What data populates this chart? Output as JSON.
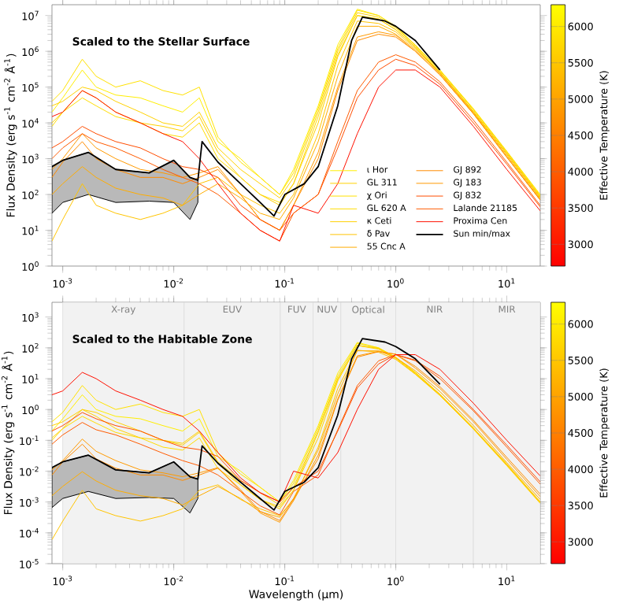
{
  "chart_data": [
    {
      "type": "line",
      "title": "Scaled to the Stellar Surface",
      "ylabel": "Flux Density (erg s$^{-1}$ cm$^{-2}$ Å$^{-1}$)",
      "clabel": "Effective Temperature (K)",
      "log": "xy",
      "legend": "bottom right",
      "xlim": [
        0.0008,
        20
      ],
      "ylim": [
        1,
        20000000.0
      ],
      "clim": [
        2700,
        6300
      ],
      "xticks": [
        {
          "value": 0.001,
          "label": "10$^{-3}$"
        },
        {
          "value": 0.01,
          "label": "10$^{-2}$"
        },
        {
          "value": 0.1,
          "label": "10$^{-1}$"
        },
        {
          "value": 1,
          "label": "10$^{0}$"
        },
        {
          "value": 10,
          "label": "10$^{1}$"
        }
      ],
      "yticks": [
        {
          "value": 1,
          "label": "10$^{0}$"
        },
        {
          "value": 10,
          "label": "10$^{1}$"
        },
        {
          "value": 100,
          "label": "10$^{2}$"
        },
        {
          "value": 1000,
          "label": "10$^{3}$"
        },
        {
          "value": 10000,
          "label": "10$^{4}$"
        },
        {
          "value": 100000,
          "label": "10$^{5}$"
        },
        {
          "value": 1000000,
          "label": "10$^{6}$"
        },
        {
          "value": 10000000,
          "label": "10$^{7}$"
        }
      ],
      "cticks": [
        3000,
        3500,
        4000,
        4500,
        5000,
        5500,
        6000
      ],
      "x": [
        0.0008,
        0.001,
        0.0015,
        0.002,
        0.003,
        0.005,
        0.008,
        0.012,
        0.017,
        0.025,
        0.04,
        0.06,
        0.09,
        0.12,
        0.2,
        0.3,
        0.45,
        0.7,
        1,
        1.5,
        2.5,
        5,
        10,
        20
      ],
      "series": [
        {
          "name": "ι Hor",
          "color": "#ffee00",
          "values": [
            20000.0,
            50000.0,
            300000.0,
            100000.0,
            60000.0,
            50000.0,
            30000.0,
            20000.0,
            50000.0,
            3000.0,
            1000.0,
            300,
            100,
            500,
            30000.0,
            1500000.0,
            15000000.0,
            10000000.0,
            5000000.0,
            1500000.0,
            300000.0,
            25000.0,
            1600.0,
            100
          ]
        },
        {
          "name": "GL 311",
          "color": "#ffd100",
          "values": [
            30000.0,
            40000.0,
            100000.0,
            80000.0,
            40000.0,
            20000.0,
            10000.0,
            8000.0,
            20000.0,
            2000.0,
            500,
            200,
            80,
            300,
            20000.0,
            1000000.0,
            12000000.0,
            9000000.0,
            4500000.0,
            1400000.0,
            280000.0,
            23000.0,
            1500.0,
            90
          ]
        },
        {
          "name": "χ Ori",
          "color": "#ffe100",
          "values": [
            40000.0,
            80000.0,
            600000.0,
            200000.0,
            100000.0,
            150000.0,
            80000.0,
            60000.0,
            100000.0,
            4000.0,
            800,
            300,
            100,
            400,
            25000.0,
            1200000.0,
            14000000.0,
            10000000.0,
            4800000.0,
            1500000.0,
            300000.0,
            24000.0,
            1600.0,
            95
          ]
        },
        {
          "name": "GL 620 A",
          "color": "#ffdc00",
          "values": [
            8000.0,
            20000.0,
            50000.0,
            30000.0,
            15000.0,
            10000.0,
            5000.0,
            4000.0,
            10000.0,
            1000.0,
            300,
            100,
            60,
            200,
            15000.0,
            800000.0,
            10000000.0,
            8000000.0,
            4000000.0,
            1300000.0,
            260000.0,
            21000.0,
            1400.0,
            85
          ]
        },
        {
          "name": "κ Ceti",
          "color": "#ffd000",
          "values": [
            10000.0,
            20000.0,
            80000.0,
            50000.0,
            20000.0,
            10000.0,
            8000.0,
            6000.0,
            15000.0,
            1500.0,
            300,
            100,
            50,
            200,
            10000.0,
            700000.0,
            10000000.0,
            8000000.0,
            4000000.0,
            1300000.0,
            260000.0,
            21000.0,
            1400.0,
            85
          ]
        },
        {
          "name": "δ Pav",
          "color": "#ffc400",
          "values": [
            5,
            20,
            200,
            50,
            30,
            20,
            30,
            50,
            200,
            300,
            100,
            50,
            30,
            100,
            5000.0,
            400000.0,
            7000000.0,
            6000000.0,
            3500000.0,
            1200000.0,
            250000.0,
            20000.0,
            1300.0,
            80
          ]
        },
        {
          "name": "55 Cnc A",
          "color": "#ffad00",
          "values": [
            100,
            200,
            600,
            300,
            150,
            100,
            80,
            50,
            100,
            200,
            80,
            30,
            20,
            80,
            3000.0,
            200000.0,
            5000000.0,
            5000000.0,
            3000000.0,
            1100000.0,
            240000.0,
            19000.0,
            1200.0,
            75
          ]
        },
        {
          "name": "GJ 892",
          "color": "#ff8c00",
          "values": [
            300,
            800,
            3000.0,
            1000.0,
            500,
            300,
            300,
            200,
            300,
            500,
            100,
            20,
            10,
            50,
            1000.0,
            80000.0,
            2000000.0,
            3000000.0,
            2500000.0,
            1000000.0,
            220000.0,
            18000.0,
            1100.0,
            70
          ]
        },
        {
          "name": "GJ 183",
          "color": "#ff9a00",
          "values": [
            500,
            1000.0,
            5000.0,
            2000.0,
            1000.0,
            500,
            400,
            300,
            400,
            600,
            100,
            20,
            10,
            50,
            1500.0,
            100000.0,
            2500000.0,
            3500000.0,
            2800000.0,
            1000000.0,
            220000.0,
            18000.0,
            1100.0,
            70
          ]
        },
        {
          "name": "GJ 832",
          "color": "#ff4c00",
          "values": [
            2000.0,
            3000.0,
            8000.0,
            5000.0,
            3000.0,
            2000.0,
            1000.0,
            600,
            500,
            300,
            50,
            20,
            10,
            30,
            100,
            2000.0,
            50000.0,
            300000.0,
            600000.0,
            400000.0,
            120000.0,
            10000.0,
            700,
            45
          ]
        },
        {
          "name": "Lalande 21185",
          "color": "#ff5a00",
          "values": [
            1000.0,
            2000.0,
            5000.0,
            3000.0,
            2000.0,
            1000.0,
            500,
            300,
            200,
            100,
            30,
            10,
            5,
            30,
            100,
            3000.0,
            80000.0,
            500000.0,
            800000.0,
            500000.0,
            140000.0,
            12000.0,
            800,
            50
          ]
        },
        {
          "name": "Proxima Cen",
          "color": "#ff1000",
          "values": [
            15000.0,
            20000.0,
            80000.0,
            50000.0,
            20000.0,
            10000.0,
            5000.0,
            3000.0,
            1000.0,
            200,
            30,
            10,
            5,
            50,
            30,
            200,
            5000.0,
            100000.0,
            300000.0,
            300000.0,
            100000.0,
            8000.0,
            500,
            35
          ]
        },
        {
          "name": "Sun min/max",
          "color": "#000000",
          "x": [
            0.0008,
            0.001,
            0.0017,
            0.003,
            0.006,
            0.01,
            0.014,
            0.0165,
            0.018,
            0.025,
            0.04,
            0.06,
            0.08,
            0.1,
            0.15,
            0.2,
            0.3,
            0.4,
            0.5,
            0.8,
            1,
            1.5,
            2.5
          ],
          "values": [
            600,
            900,
            1500,
            500,
            400,
            900,
            300,
            250,
            3000,
            800,
            200,
            60,
            25,
            100,
            200,
            600,
            30000.0,
            2000000.0,
            9000000.0,
            7000000.0,
            5000000.0,
            2000000.0,
            300000.0
          ],
          "upper": [
            600,
            900,
            1500,
            500,
            400,
            900,
            300,
            250,
            null,
            null,
            null,
            null,
            null,
            null,
            null,
            null,
            null,
            null,
            null,
            null,
            null,
            null,
            null
          ],
          "lower": [
            30,
            60,
            100,
            60,
            65,
            60,
            20,
            60,
            null,
            null,
            null,
            null,
            null,
            null,
            null,
            null,
            null,
            null,
            null,
            null,
            null,
            null,
            null
          ]
        }
      ]
    },
    {
      "type": "line",
      "title": "Scaled to the Habitable Zone",
      "xlabel": "Wavelength (µm)",
      "ylabel": "Flux Density (erg s$^{-1}$ cm$^{-2}$ Å$^{-1}$)",
      "clabel": "Effective Temperature (K)",
      "log": "xy",
      "xlim": [
        0.0008,
        20
      ],
      "ylim": [
        1e-05,
        3000
      ],
      "clim": [
        2700,
        6300
      ],
      "xticks": [
        {
          "value": 0.001,
          "label": "10$^{-3}$"
        },
        {
          "value": 0.01,
          "label": "10$^{-2}$"
        },
        {
          "value": 0.1,
          "label": "10$^{-1}$"
        },
        {
          "value": 1,
          "label": "10$^{0}$"
        },
        {
          "value": 10,
          "label": "10$^{1}$"
        }
      ],
      "yticks": [
        {
          "value": 1e-05,
          "label": "10$^{-5}$"
        },
        {
          "value": 0.0001,
          "label": "10$^{-4}$"
        },
        {
          "value": 0.001,
          "label": "10$^{-3}$"
        },
        {
          "value": 0.01,
          "label": "10$^{-2}$"
        },
        {
          "value": 0.1,
          "label": "10$^{-1}$"
        },
        {
          "value": 1,
          "label": "10$^{0}$"
        },
        {
          "value": 10,
          "label": "10$^{1}$"
        },
        {
          "value": 100,
          "label": "10$^{2}$"
        },
        {
          "value": 1000,
          "label": "10$^{3}$"
        }
      ],
      "cticks": [
        3000,
        3500,
        4000,
        4500,
        5000,
        5500,
        6000
      ],
      "bands": [
        {
          "axis": "x",
          "from": 0.001,
          "to": 0.0124,
          "label": "X-ray",
          "color": "#f2f2f2"
        },
        {
          "axis": "x",
          "from": 0.0124,
          "to": 0.0912,
          "label": "EUV",
          "color": "#f2f2f2"
        },
        {
          "axis": "x",
          "from": 0.0912,
          "to": 0.18,
          "label": "FUV",
          "color": "#f2f2f2"
        },
        {
          "axis": "x",
          "from": 0.18,
          "to": 0.32,
          "label": "NUV",
          "color": "#f2f2f2"
        },
        {
          "axis": "x",
          "from": 0.32,
          "to": 1,
          "label": "Optical",
          "color": "#f2f2f2"
        },
        {
          "axis": "x",
          "from": 1,
          "to": 5,
          "label": "NIR",
          "color": "#f2f2f2"
        },
        {
          "axis": "x",
          "from": 5,
          "to": 20,
          "label": "MIR",
          "color": "#f2f2f2"
        }
      ],
      "x": [
        0.0008,
        0.001,
        0.0015,
        0.002,
        0.003,
        0.005,
        0.008,
        0.012,
        0.017,
        0.025,
        0.04,
        0.06,
        0.09,
        0.12,
        0.2,
        0.3,
        0.45,
        0.7,
        1,
        1.5,
        2.5,
        5,
        10,
        20
      ],
      "series": [
        {
          "color": "#ffee00",
          "values": [
            0.2,
            0.5,
            3,
            1,
            0.6,
            0.5,
            0.3,
            0.2,
            0.5,
            0.03,
            0.01,
            0.003,
            0.001,
            0.005,
            0.3,
            15,
            150,
            100,
            50,
            15,
            3,
            0.25,
            0.016,
            0.001
          ]
        },
        {
          "color": "#ffd100",
          "values": [
            0.3,
            0.4,
            1,
            0.8,
            0.4,
            0.2,
            0.1,
            0.08,
            0.2,
            0.02,
            0.005,
            0.002,
            0.0008,
            0.003,
            0.2,
            10,
            120,
            90,
            45,
            14,
            2.8,
            0.23,
            0.015,
            0.0009
          ]
        },
        {
          "color": "#ffe100",
          "values": [
            0.4,
            0.8,
            6,
            2,
            1,
            1.5,
            0.8,
            0.6,
            1,
            0.04,
            0.008,
            0.003,
            0.001,
            0.004,
            0.25,
            12,
            140,
            100,
            48,
            15,
            3,
            0.24,
            0.016,
            0.00095
          ]
        },
        {
          "color": "#ffdc00",
          "values": [
            0.1,
            0.24,
            0.6,
            0.36,
            0.18,
            0.12,
            0.06,
            0.048,
            0.12,
            0.012,
            0.0036,
            0.0012,
            0.0007,
            0.0024,
            0.18,
            9.6,
            120,
            96,
            48,
            16,
            3.1,
            0.25,
            0.017,
            0.001
          ]
        },
        {
          "color": "#ffd000",
          "values": [
            0.12,
            0.24,
            1,
            0.6,
            0.24,
            0.12,
            0.1,
            0.07,
            0.18,
            0.018,
            0.0036,
            0.0012,
            0.0006,
            0.0024,
            0.12,
            8.4,
            120,
            96,
            48,
            16,
            3.1,
            0.25,
            0.017,
            0.001
          ]
        },
        {
          "color": "#ffc400",
          "values": [
            6e-05,
            0.00024,
            0.0024,
            0.0006,
            0.00036,
            0.00024,
            0.00036,
            0.0006,
            0.0024,
            0.0036,
            0.0012,
            0.0006,
            0.00036,
            0.0012,
            0.06,
            4.8,
            84,
            72,
            42,
            14,
            3,
            0.24,
            0.016,
            0.00096
          ]
        },
        {
          "color": "#ffad00",
          "values": [
            0.0016,
            0.0032,
            0.0096,
            0.0048,
            0.0024,
            0.0016,
            0.0013,
            0.0008,
            0.0016,
            0.0032,
            0.0013,
            0.00048,
            0.00032,
            0.0013,
            0.048,
            3.2,
            80,
            80,
            48,
            18,
            3.8,
            0.3,
            0.019,
            0.0012
          ]
        },
        {
          "color": "#ff8c00",
          "values": [
            0.0075,
            0.02,
            0.075,
            0.025,
            0.0125,
            0.0075,
            0.0075,
            0.005,
            0.0075,
            0.0125,
            0.0025,
            0.0005,
            0.00025,
            0.00125,
            0.025,
            2,
            50,
            75,
            62,
            25,
            5.5,
            0.45,
            0.028,
            0.0018
          ]
        },
        {
          "color": "#ff9a00",
          "values": [
            0.011,
            0.022,
            0.11,
            0.044,
            0.022,
            0.011,
            0.0088,
            0.0066,
            0.0088,
            0.013,
            0.0022,
            0.00044,
            0.00022,
            0.0011,
            0.033,
            2.2,
            55,
            77,
            62,
            22,
            4.8,
            0.4,
            0.024,
            0.0015
          ]
        },
        {
          "color": "#ff4c00",
          "values": [
            0.2,
            0.3,
            0.8,
            0.5,
            0.3,
            0.2,
            0.1,
            0.06,
            0.05,
            0.03,
            0.005,
            0.002,
            0.001,
            0.003,
            0.01,
            0.2,
            5,
            30,
            60,
            40,
            12,
            1,
            0.07,
            0.0045
          ]
        },
        {
          "color": "#ff5a00",
          "values": [
            0.075,
            0.15,
            0.38,
            0.22,
            0.15,
            0.075,
            0.038,
            0.022,
            0.015,
            0.0075,
            0.0022,
            0.00075,
            0.00038,
            0.0022,
            0.0075,
            0.22,
            6,
            38,
            60,
            38,
            10,
            0.9,
            0.06,
            0.0038
          ]
        },
        {
          "color": "#ff1000",
          "values": [
            3,
            4,
            16,
            10,
            4,
            2,
            1,
            0.6,
            0.2,
            0.04,
            0.006,
            0.002,
            0.001,
            0.01,
            0.006,
            0.04,
            1,
            20,
            60,
            60,
            20,
            1.6,
            0.1,
            0.007
          ]
        },
        {
          "color": "#000000",
          "x": [
            0.0008,
            0.001,
            0.0017,
            0.003,
            0.006,
            0.01,
            0.014,
            0.0165,
            0.018,
            0.025,
            0.04,
            0.06,
            0.08,
            0.1,
            0.15,
            0.2,
            0.3,
            0.4,
            0.5,
            0.8,
            1,
            1.5,
            2.5
          ],
          "values": [
            0.013,
            0.02,
            0.033,
            0.011,
            0.0088,
            0.02,
            0.0066,
            0.0055,
            0.066,
            0.018,
            0.0044,
            0.0013,
            0.00055,
            0.0022,
            0.0044,
            0.013,
            0.66,
            44,
            200,
            154,
            110,
            44,
            6.6
          ],
          "upper": [
            0.013,
            0.02,
            0.033,
            0.011,
            0.0088,
            0.02,
            0.0066,
            0.0055,
            null,
            null,
            null,
            null,
            null,
            null,
            null,
            null,
            null,
            null,
            null,
            null,
            null,
            null,
            null
          ],
          "lower": [
            0.00066,
            0.0013,
            0.0022,
            0.0013,
            0.0014,
            0.0013,
            0.00044,
            0.0013,
            null,
            null,
            null,
            null,
            null,
            null,
            null,
            null,
            null,
            null,
            null,
            null,
            null,
            null,
            null
          ]
        }
      ]
    }
  ]
}
